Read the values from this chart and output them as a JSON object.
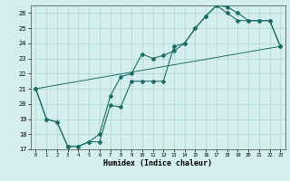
{
  "xlabel": "Humidex (Indice chaleur)",
  "bg_color": "#d4eeee",
  "grid_color": "#aed4d4",
  "line_color": "#1a6e6a",
  "xlim": [
    -0.5,
    23.5
  ],
  "ylim": [
    17,
    26.5
  ],
  "xticks": [
    0,
    1,
    2,
    3,
    4,
    5,
    6,
    7,
    8,
    9,
    10,
    11,
    12,
    13,
    14,
    15,
    16,
    17,
    18,
    19,
    20,
    21,
    22,
    23
  ],
  "yticks": [
    17,
    18,
    19,
    20,
    21,
    22,
    23,
    24,
    25,
    26
  ],
  "line1_x": [
    0,
    1,
    2,
    3,
    4,
    5,
    6,
    7,
    8,
    9,
    10,
    11,
    12,
    13,
    14,
    15,
    16,
    17,
    18,
    19,
    20,
    21,
    22,
    23
  ],
  "line1_y": [
    21.0,
    19.0,
    18.8,
    17.2,
    17.2,
    17.5,
    17.5,
    19.9,
    19.8,
    21.5,
    21.5,
    21.5,
    21.5,
    23.8,
    24.0,
    25.0,
    25.8,
    26.5,
    26.4,
    26.0,
    25.5,
    25.5,
    25.5,
    23.8
  ],
  "line2_x": [
    0,
    1,
    2,
    3,
    4,
    5,
    6,
    7,
    8,
    9,
    10,
    11,
    12,
    13,
    14,
    15,
    16,
    17,
    18,
    19,
    20,
    21,
    22,
    23
  ],
  "line2_y": [
    21.0,
    19.0,
    18.8,
    17.2,
    17.2,
    17.5,
    18.0,
    20.5,
    21.8,
    22.0,
    23.3,
    23.0,
    23.2,
    23.5,
    24.0,
    25.0,
    25.8,
    26.5,
    26.0,
    25.5,
    25.5,
    25.5,
    25.5,
    23.8
  ],
  "line3_x": [
    0,
    23
  ],
  "line3_y": [
    21.0,
    23.8
  ]
}
